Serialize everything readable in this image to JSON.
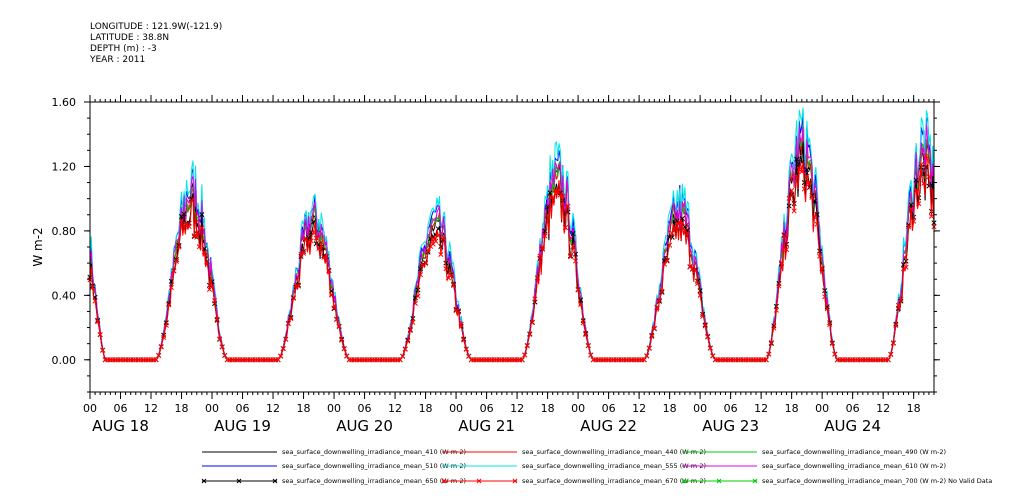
{
  "header": {
    "line1": "LONGITUDE : 121.9W(-121.9)",
    "line2": "LATITUDE : 38.8N",
    "line3": "DEPTH (m) : -3",
    "line4": "YEAR : 2011"
  },
  "chart_data": {
    "type": "line",
    "title": "",
    "xlabel": "",
    "ylabel": "W m-2",
    "xlim": [
      0,
      166
    ],
    "ylim": [
      -0.2,
      1.6
    ],
    "yticks": [
      0.0,
      0.4,
      0.8,
      1.2,
      1.6
    ],
    "ytick_labels": [
      "0.00",
      "0.40",
      "0.80",
      "1.20",
      "1.60"
    ],
    "xticks": [
      0,
      6,
      12,
      18,
      24,
      30,
      36,
      42,
      48,
      54,
      60,
      66,
      72,
      78,
      84,
      90,
      96,
      102,
      108,
      114,
      120,
      126,
      132,
      138,
      144,
      150,
      156,
      162
    ],
    "xtick_labels": [
      "00",
      "06",
      "12",
      "18",
      "00",
      "06",
      "12",
      "18",
      "00",
      "06",
      "12",
      "18",
      "00",
      "06",
      "12",
      "18",
      "00",
      "06",
      "12",
      "18",
      "00",
      "06",
      "12",
      "18",
      "00",
      "06",
      "12",
      "18"
    ],
    "day_labels": [
      "AUG 18",
      "AUG 19",
      "AUG 20",
      "AUG 21",
      "AUG 22",
      "AUG 23",
      "AUG 24"
    ],
    "day_label_x": [
      6,
      30,
      54,
      78,
      102,
      126,
      150
    ],
    "grid": false,
    "legend_position": "bottom",
    "daily_peaks": [
      1.0,
      0.85,
      0.82,
      1.1,
      0.9,
      1.3,
      1.25
    ],
    "series": [
      {
        "name": "sea_surface_downwelling_irradiance_mean_410 (W m-2)",
        "color": "#000000",
        "scale": 0.97,
        "marker": "none"
      },
      {
        "name": "sea_surface_downwelling_irradiance_mean_440 (W m-2)",
        "color": "#ff0000",
        "scale": 0.98,
        "marker": "none"
      },
      {
        "name": "sea_surface_downwelling_irradiance_mean_490 (W m-2)",
        "color": "#00cc00",
        "scale": 1.0,
        "marker": "none"
      },
      {
        "name": "sea_surface_downwelling_irradiance_mean_510 (W m-2)",
        "color": "#0000ff",
        "scale": 1.06,
        "marker": "none"
      },
      {
        "name": "sea_surface_downwelling_irradiance_mean_555 (W m-2)",
        "color": "#00e5e5",
        "scale": 1.1,
        "marker": "none"
      },
      {
        "name": "sea_surface_downwelling_irradiance_mean_610 (W m-2)",
        "color": "#e000e0",
        "scale": 1.02,
        "marker": "none"
      },
      {
        "name": "sea_surface_downwelling_irradiance_mean_650 (W m-2)",
        "color": "#000000",
        "scale": 0.9,
        "marker": "x"
      },
      {
        "name": "sea_surface_downwelling_irradiance_mean_670 (W m-2)",
        "color": "#ff0000",
        "scale": 0.88,
        "marker": "x"
      },
      {
        "name": "sea_surface_downwelling_irradiance_mean_700 (W m-2) No Valid Data",
        "color": "#00cc00",
        "scale": 0.0,
        "marker": "x"
      }
    ]
  }
}
